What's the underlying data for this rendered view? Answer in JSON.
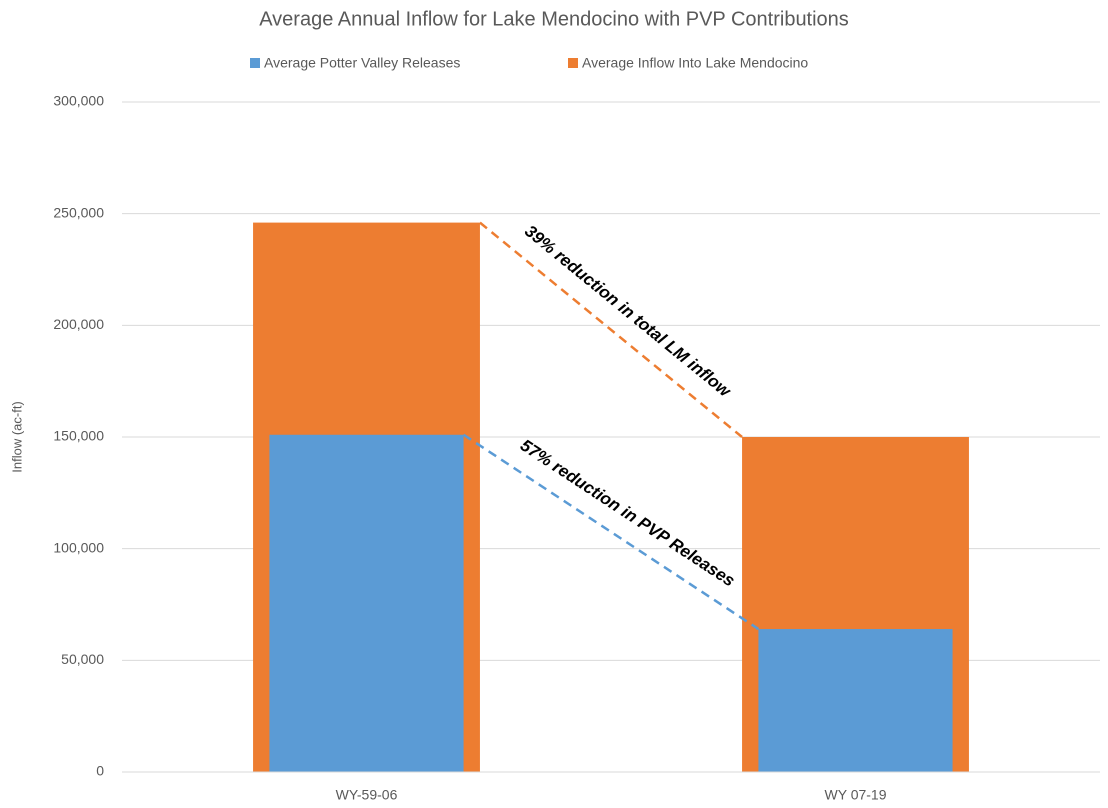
{
  "chart_data": {
    "type": "bar",
    "title": "Average Annual Inflow for Lake Mendocino with PVP Contributions",
    "y_label": "Inflow (ac-ft)",
    "categories": [
      "WY-59-06",
      "WY 07-19"
    ],
    "series": [
      {
        "name": "Average Potter Valley Releases",
        "color": "#5b9bd5",
        "values": [
          151000,
          64000
        ]
      },
      {
        "name": "Average Inflow Into Lake Mendocino",
        "color": "#ed7d31",
        "values": [
          246000,
          150000
        ]
      }
    ],
    "ylim": [
      0,
      300000
    ],
    "yticks": [
      0,
      {
        "value": 50000,
        "label": "50,000"
      },
      {
        "value": 100000,
        "label": "100,000"
      },
      {
        "value": 150000,
        "label": "150,000"
      },
      {
        "value": 200000,
        "label": "200,000"
      },
      {
        "value": 250000,
        "label": "250,000"
      },
      {
        "value": 300000,
        "label": "300,000"
      }
    ],
    "grid": true,
    "legend": "top",
    "annotations": [
      "39% reduction in total LM inflow",
      "57% reduction in PVP Releases"
    ]
  }
}
